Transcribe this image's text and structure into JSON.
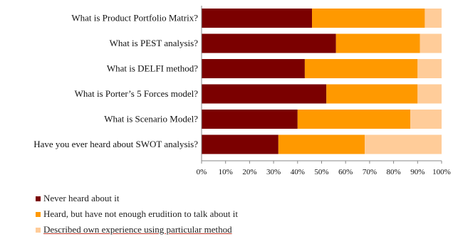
{
  "colors": {
    "never": "#7b0000",
    "heard": "#ff9900",
    "described": "#ffcc99",
    "axis": "#888888"
  },
  "chart_data": {
    "type": "bar",
    "orientation": "horizontal",
    "stacked": true,
    "categories": [
      "What is Product Portfolio Matrix?",
      "What is PEST analysis?",
      "What is DELFI method?",
      "What is Porter’s 5 Forces model?",
      "What is Scenario Model?",
      "Have you ever heard about SWOT analysis?"
    ],
    "series": [
      {
        "name": "Never heard about it",
        "color": "#7b0000",
        "values": [
          46,
          56,
          43,
          52,
          40,
          32
        ]
      },
      {
        "name": "Heard, but have not enough erudition to talk about it",
        "color": "#ff9900",
        "values": [
          47,
          35,
          47,
          38,
          47,
          36
        ]
      },
      {
        "name": "Described own experience using particular method",
        "color": "#ffcc99",
        "values": [
          7,
          9,
          10,
          10,
          13,
          32
        ]
      }
    ],
    "xlim": [
      0,
      100
    ],
    "ticks": [
      "0%",
      "10%",
      "20%",
      "30%",
      "40%",
      "50%",
      "60%",
      "70%",
      "80%",
      "90%",
      "100%"
    ],
    "grid": false,
    "legend_position": "bottom-left"
  }
}
